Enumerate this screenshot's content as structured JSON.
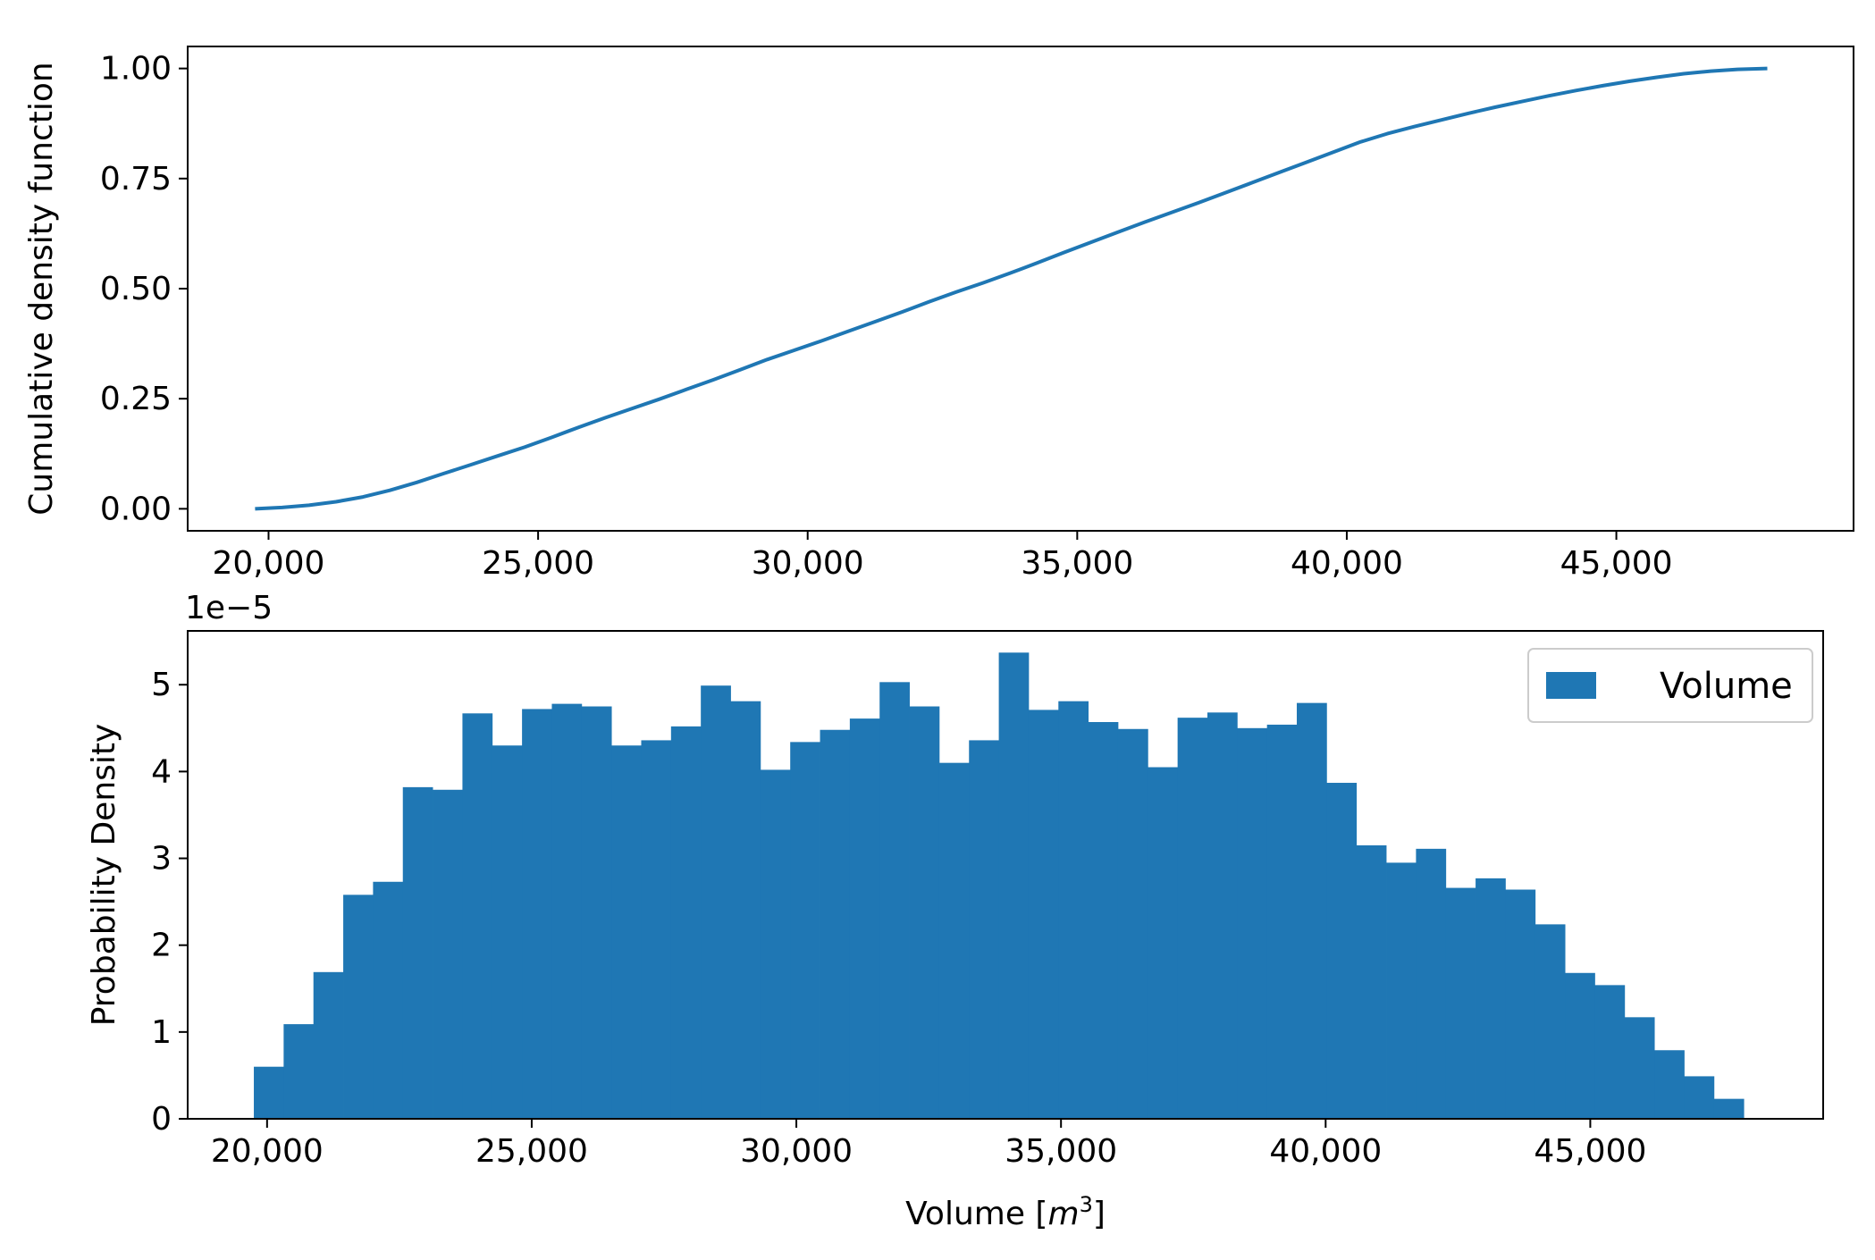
{
  "colors": {
    "series": "#1f77b4",
    "axes": "#000000",
    "background": "#ffffff"
  },
  "chart_data": [
    {
      "type": "line",
      "ylabel": "Cumulative density function",
      "xlim": [
        18500,
        49400
      ],
      "ylim": [
        -0.05,
        1.05
      ],
      "xticks": [
        20000,
        25000,
        30000,
        35000,
        40000,
        45000
      ],
      "xtick_labels": [
        "20,000",
        "25,000",
        "30,000",
        "35,000",
        "40,000",
        "45,000"
      ],
      "yticks": [
        0.0,
        0.25,
        0.5,
        0.75,
        1.0
      ],
      "ytick_labels": [
        "0.00",
        "0.25",
        "0.50",
        "0.75",
        "1.00"
      ],
      "series": [
        {
          "x": [
            19750,
            20250,
            20750,
            21250,
            21750,
            22250,
            22750,
            23250,
            23750,
            24250,
            24750,
            25250,
            25750,
            26250,
            26750,
            27250,
            27750,
            28250,
            28750,
            29250,
            29750,
            30250,
            30750,
            31250,
            31750,
            32250,
            32750,
            33250,
            33750,
            34250,
            34750,
            35250,
            35750,
            36250,
            36750,
            37250,
            37750,
            38250,
            38750,
            39250,
            39750,
            40250,
            40750,
            41250,
            41750,
            42250,
            42750,
            43250,
            43750,
            44250,
            44750,
            45250,
            45750,
            46250,
            46750,
            47250,
            47800
          ],
          "y": [
            0.0,
            0.003,
            0.008,
            0.016,
            0.027,
            0.042,
            0.06,
            0.08,
            0.1,
            0.12,
            0.14,
            0.162,
            0.185,
            0.207,
            0.228,
            0.249,
            0.271,
            0.293,
            0.316,
            0.339,
            0.36,
            0.381,
            0.403,
            0.425,
            0.447,
            0.47,
            0.492,
            0.513,
            0.535,
            0.558,
            0.582,
            0.605,
            0.628,
            0.651,
            0.673,
            0.695,
            0.718,
            0.741,
            0.764,
            0.787,
            0.81,
            0.833,
            0.852,
            0.868,
            0.883,
            0.898,
            0.912,
            0.925,
            0.938,
            0.95,
            0.961,
            0.971,
            0.98,
            0.988,
            0.994,
            0.998,
            1.0
          ]
        }
      ]
    },
    {
      "type": "bar",
      "xlabel": "Volume [m³]",
      "xlabel_base": "Volume [",
      "xlabel_var": "m",
      "xlabel_sup": "3",
      "xlabel_end": "]",
      "ylabel": "Probability Density",
      "offset_text": "1e−5",
      "xlim": [
        18500,
        49400
      ],
      "ylim": [
        0,
        5.62
      ],
      "xticks": [
        20000,
        25000,
        30000,
        35000,
        40000,
        45000
      ],
      "xtick_labels": [
        "20,000",
        "25,000",
        "30,000",
        "35,000",
        "40,000",
        "45,000"
      ],
      "yticks": [
        0,
        1,
        2,
        3,
        4,
        5
      ],
      "ytick_labels": [
        "0",
        "1",
        "2",
        "3",
        "4",
        "5"
      ],
      "legend": {
        "label": "Volume",
        "placement": "upper right"
      },
      "bin_edges": [
        19750,
        20313,
        20876,
        21439,
        22002,
        22565,
        23128,
        23691,
        24254,
        24817,
        25380,
        25943,
        26506,
        27069,
        27632,
        28195,
        28758,
        29321,
        29884,
        30447,
        31010,
        31573,
        32136,
        32699,
        33262,
        33825,
        34388,
        34951,
        35514,
        36077,
        36640,
        37203,
        37766,
        38329,
        38892,
        39455,
        40018,
        40581,
        41144,
        41707,
        42270,
        42833,
        43396,
        43959,
        44522,
        45085,
        45648,
        46211,
        46774,
        47337,
        47900
      ],
      "values": [
        0.6,
        1.09,
        1.69,
        2.58,
        2.73,
        3.82,
        3.79,
        4.67,
        4.3,
        4.72,
        4.78,
        4.75,
        4.3,
        4.36,
        4.52,
        4.99,
        4.81,
        4.02,
        4.34,
        4.48,
        4.61,
        5.03,
        4.75,
        4.1,
        4.36,
        5.37,
        4.71,
        4.81,
        4.57,
        4.49,
        4.05,
        4.62,
        4.68,
        4.5,
        4.54,
        4.79,
        3.87,
        3.15,
        2.95,
        3.11,
        2.66,
        2.77,
        2.64,
        2.24,
        1.68,
        1.54,
        1.17,
        0.79,
        0.49,
        0.23
      ]
    }
  ]
}
